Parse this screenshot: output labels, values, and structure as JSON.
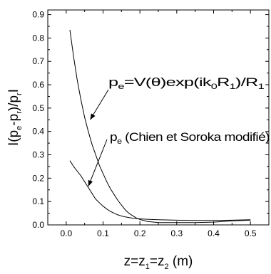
{
  "chart_data": {
    "type": "line",
    "xlabel": {
      "base": "z=z",
      "s1": "1",
      "mid": "=z",
      "s2": "2",
      "tail": " (m)"
    },
    "ylabel": {
      "a": "I(p",
      "s1": "e",
      "b": "-p",
      "s2": "r",
      "c": ")/p",
      "s3": "r",
      "d": "I"
    },
    "xlim": [
      -0.05,
      0.55
    ],
    "ylim": [
      0,
      0.92
    ],
    "x_ticks": [
      "0.0",
      "0.1",
      "0.2",
      "0.3",
      "0.4",
      "0.5"
    ],
    "y_ticks": [
      "0.0",
      "0.1",
      "0.2",
      "0.3",
      "0.4",
      "0.5",
      "0.6",
      "0.7",
      "0.8",
      "0.9"
    ],
    "grid": false,
    "series": [
      {
        "name": "p_e=V(θ)exp(ik_0R_1)/R_1",
        "x": [
          0.01,
          0.02,
          0.03,
          0.04,
          0.05,
          0.06,
          0.07,
          0.08,
          0.09,
          0.1,
          0.11,
          0.12,
          0.13,
          0.14,
          0.15,
          0.16,
          0.17,
          0.18,
          0.19,
          0.2,
          0.22,
          0.25,
          0.3,
          0.35,
          0.4,
          0.45,
          0.5
        ],
        "y": [
          0.835,
          0.72,
          0.62,
          0.535,
          0.46,
          0.4,
          0.345,
          0.3,
          0.255,
          0.22,
          0.185,
          0.155,
          0.13,
          0.105,
          0.085,
          0.065,
          0.05,
          0.04,
          0.03,
          0.023,
          0.015,
          0.01,
          0.01,
          0.01,
          0.012,
          0.017,
          0.02
        ]
      },
      {
        "name": "p_e (Chien et Soroka modifié)",
        "x": [
          0.01,
          0.02,
          0.03,
          0.04,
          0.05,
          0.06,
          0.07,
          0.08,
          0.09,
          0.1,
          0.11,
          0.12,
          0.13,
          0.14,
          0.15,
          0.16,
          0.18,
          0.2,
          0.22,
          0.25,
          0.3,
          0.35,
          0.4,
          0.45,
          0.5
        ],
        "y": [
          0.275,
          0.25,
          0.23,
          0.21,
          0.185,
          0.16,
          0.135,
          0.11,
          0.095,
          0.08,
          0.068,
          0.058,
          0.05,
          0.043,
          0.038,
          0.034,
          0.029,
          0.026,
          0.024,
          0.022,
          0.02,
          0.019,
          0.019,
          0.02,
          0.022
        ]
      }
    ],
    "annotations": [
      {
        "parts": {
          "a": "p",
          "s1": "e",
          "b": "=V(θ)exp(ik",
          "s2": "0",
          "c": "R",
          "s3": "1",
          "d": ")/R",
          "s4": "1"
        },
        "arrow_to": [
          0.065,
          0.45
        ]
      },
      {
        "parts": {
          "a": "p",
          "s1": "e",
          "b": " (Chien et Soroka modifié)"
        },
        "arrow_to": [
          0.06,
          0.165
        ]
      }
    ]
  }
}
